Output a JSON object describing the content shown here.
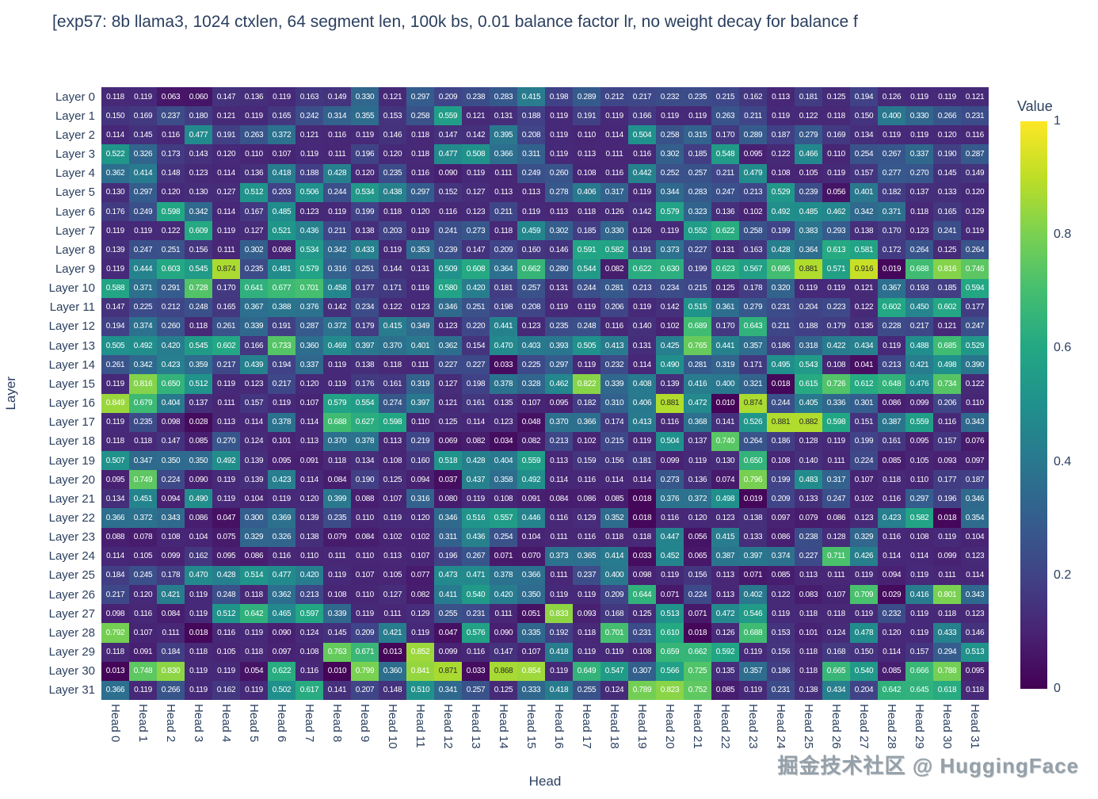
{
  "title": "[exp57: 8b llama3, 1024 ctxlen, 64 segment len, 100k bs, 0.01 balance factor lr, no weight decay for balance f",
  "watermark": "掘金技术社区 @ HuggingFace",
  "chart_data": {
    "type": "heatmap",
    "title": "[exp57: 8b llama3, 1024 ctxlen, 64 segment len, 100k bs, 0.01 balance factor lr, no weight decay for balance f",
    "xlabel": "Head",
    "ylabel": "Layer",
    "colorscale": "viridis",
    "font_color": "#2a3f5f",
    "background": "#ffffff",
    "legend_position": "right",
    "colorbar": {
      "title": "Value",
      "range": [
        0,
        1
      ],
      "tick_values": [
        0,
        0.2,
        0.4,
        0.6,
        0.8,
        1
      ],
      "tick_labels": [
        "0",
        "0.2",
        "0.4",
        "0.6",
        "0.8",
        "1"
      ]
    },
    "rows": [
      "Layer 0",
      "Layer 1",
      "Layer 2",
      "Layer 3",
      "Layer 4",
      "Layer 5",
      "Layer 6",
      "Layer 7",
      "Layer 8",
      "Layer 9",
      "Layer 10",
      "Layer 11",
      "Layer 12",
      "Layer 13",
      "Layer 14",
      "Layer 15",
      "Layer 16",
      "Layer 17",
      "Layer 18",
      "Layer 19",
      "Layer 20",
      "Layer 21",
      "Layer 22",
      "Layer 23",
      "Layer 24",
      "Layer 25",
      "Layer 26",
      "Layer 27",
      "Layer 28",
      "Layer 29",
      "Layer 30",
      "Layer 31"
    ],
    "columns": [
      "Head 0",
      "Head 1",
      "Head 2",
      "Head 3",
      "Head 4",
      "Head 5",
      "Head 6",
      "Head 7",
      "Head 8",
      "Head 9",
      "Head 10",
      "Head 11",
      "Head 12",
      "Head 13",
      "Head 14",
      "Head 15",
      "Head 16",
      "Head 17",
      "Head 18",
      "Head 19",
      "Head 20",
      "Head 21",
      "Head 22",
      "Head 23",
      "Head 24",
      "Head 25",
      "Head 26",
      "Head 27",
      "Head 28",
      "Head 29",
      "Head 30",
      "Head 31"
    ],
    "values": [
      [
        0.118,
        0.119,
        0.063,
        0.06,
        0.147,
        0.136,
        0.119,
        0.163,
        0.149,
        0.33,
        0.121,
        0.297,
        0.209,
        0.238,
        0.283,
        0.415,
        0.198,
        0.289,
        0.212,
        0.217,
        0.232,
        0.235,
        0.215,
        0.162,
        0.113,
        0.181,
        0.125,
        0.194,
        0.126,
        0.119,
        0.119,
        0.121
      ],
      [
        0.15,
        0.169,
        0.237,
        0.18,
        0.121,
        0.119,
        0.165,
        0.242,
        0.314,
        0.355,
        0.153,
        0.258,
        0.559,
        0.121,
        0.131,
        0.188,
        0.119,
        0.191,
        0.119,
        0.166,
        0.119,
        0.119,
        0.263,
        0.211,
        0.119,
        0.122,
        0.118,
        0.15,
        0.4,
        0.33,
        0.266,
        0.231
      ],
      [
        0.114,
        0.145,
        0.116,
        0.477,
        0.191,
        0.263,
        0.372,
        0.121,
        0.116,
        0.119,
        0.146,
        0.118,
        0.147,
        0.142,
        0.395,
        0.208,
        0.119,
        0.11,
        0.114,
        0.504,
        0.258,
        0.315,
        0.17,
        0.289,
        0.187,
        0.279,
        0.169,
        0.134,
        0.119,
        0.119,
        0.12,
        0.116
      ],
      [
        0.522,
        0.326,
        0.173,
        0.143,
        0.12,
        0.11,
        0.107,
        0.119,
        0.111,
        0.196,
        0.12,
        0.118,
        0.477,
        0.508,
        0.366,
        0.311,
        0.119,
        0.113,
        0.111,
        0.116,
        0.302,
        0.185,
        0.548,
        0.095,
        0.122,
        0.466,
        0.11,
        0.254,
        0.267,
        0.337,
        0.19,
        0.287
      ],
      [
        0.362,
        0.414,
        0.148,
        0.123,
        0.114,
        0.136,
        0.418,
        0.188,
        0.428,
        0.12,
        0.235,
        0.116,
        0.09,
        0.119,
        0.111,
        0.249,
        0.26,
        0.108,
        0.116,
        0.442,
        0.252,
        0.257,
        0.211,
        0.479,
        0.108,
        0.105,
        0.119,
        0.157,
        0.277,
        0.27,
        0.145,
        0.149
      ],
      [
        0.13,
        0.297,
        0.12,
        0.13,
        0.127,
        0.512,
        0.203,
        0.506,
        0.244,
        0.534,
        0.438,
        0.297,
        0.152,
        0.127,
        0.113,
        0.113,
        0.278,
        0.406,
        0.317,
        0.119,
        0.344,
        0.283,
        0.247,
        0.213,
        0.529,
        0.239,
        0.056,
        0.401,
        0.182,
        0.137,
        0.133,
        0.12
      ],
      [
        0.176,
        0.249,
        0.598,
        0.342,
        0.114,
        0.167,
        0.485,
        0.123,
        0.119,
        0.199,
        0.118,
        0.12,
        0.116,
        0.123,
        0.211,
        0.119,
        0.113,
        0.118,
        0.126,
        0.142,
        0.579,
        0.323,
        0.136,
        0.102,
        0.492,
        0.485,
        0.462,
        0.342,
        0.371,
        0.118,
        0.165,
        0.129
      ],
      [
        0.119,
        0.119,
        0.122,
        0.609,
        0.119,
        0.127,
        0.521,
        0.436,
        0.211,
        0.138,
        0.203,
        0.119,
        0.241,
        0.273,
        0.118,
        0.459,
        0.302,
        0.185,
        0.33,
        0.126,
        0.119,
        0.552,
        0.622,
        0.258,
        0.199,
        0.383,
        0.293,
        0.138,
        0.17,
        0.123,
        0.241,
        0.119
      ],
      [
        0.139,
        0.247,
        0.251,
        0.156,
        0.111,
        0.302,
        0.098,
        0.534,
        0.342,
        0.433,
        0.119,
        0.353,
        0.239,
        0.147,
        0.209,
        0.16,
        0.146,
        0.591,
        0.582,
        0.191,
        0.373,
        0.227,
        0.131,
        0.163,
        0.428,
        0.364,
        0.613,
        0.581,
        0.172,
        0.264,
        0.125,
        0.264
      ],
      [
        0.119,
        0.444,
        0.603,
        0.545,
        0.874,
        0.235,
        0.481,
        0.579,
        0.316,
        0.251,
        0.144,
        0.131,
        0.509,
        0.608,
        0.364,
        0.662,
        0.28,
        0.544,
        0.082,
        0.622,
        0.63,
        0.199,
        0.623,
        0.567,
        0.695,
        0.881,
        0.571,
        0.916,
        0.019,
        0.688,
        0.816,
        0.746
      ],
      [
        0.588,
        0.371,
        0.291,
        0.728,
        0.17,
        0.641,
        0.677,
        0.701,
        0.458,
        0.177,
        0.171,
        0.119,
        0.58,
        0.42,
        0.181,
        0.257,
        0.131,
        0.244,
        0.281,
        0.213,
        0.234,
        0.215,
        0.125,
        0.178,
        0.32,
        0.119,
        0.119,
        0.121,
        0.367,
        0.193,
        0.185,
        0.594
      ],
      [
        0.147,
        0.225,
        0.212,
        0.248,
        0.165,
        0.367,
        0.388,
        0.376,
        0.142,
        0.234,
        0.122,
        0.123,
        0.346,
        0.251,
        0.198,
        0.208,
        0.119,
        0.119,
        0.206,
        0.119,
        0.142,
        0.515,
        0.361,
        0.279,
        0.231,
        0.204,
        0.223,
        0.122,
        0.602,
        0.45,
        0.602,
        0.177
      ],
      [
        0.194,
        0.374,
        0.26,
        0.118,
        0.261,
        0.339,
        0.191,
        0.287,
        0.372,
        0.179,
        0.415,
        0.349,
        0.123,
        0.22,
        0.441,
        0.123,
        0.235,
        0.248,
        0.116,
        0.14,
        0.102,
        0.689,
        0.17,
        0.643,
        0.211,
        0.188,
        0.179,
        0.135,
        0.228,
        0.217,
        0.121,
        0.247
      ],
      [
        0.505,
        0.492,
        0.42,
        0.545,
        0.602,
        0.166,
        0.733,
        0.36,
        0.469,
        0.397,
        0.37,
        0.401,
        0.362,
        0.154,
        0.47,
        0.403,
        0.393,
        0.505,
        0.413,
        0.131,
        0.425,
        0.765,
        0.441,
        0.357,
        0.186,
        0.318,
        0.422,
        0.434,
        0.119,
        0.488,
        0.685,
        0.529
      ],
      [
        0.261,
        0.342,
        0.423,
        0.359,
        0.217,
        0.439,
        0.194,
        0.337,
        0.119,
        0.138,
        0.118,
        0.111,
        0.227,
        0.227,
        0.033,
        0.225,
        0.297,
        0.119,
        0.232,
        0.114,
        0.49,
        0.281,
        0.319,
        0.171,
        0.495,
        0.543,
        0.108,
        0.041,
        0.213,
        0.421,
        0.498,
        0.39
      ],
      [
        0.119,
        0.816,
        0.65,
        0.512,
        0.119,
        0.123,
        0.217,
        0.12,
        0.119,
        0.176,
        0.161,
        0.319,
        0.127,
        0.198,
        0.378,
        0.328,
        0.462,
        0.822,
        0.339,
        0.408,
        0.139,
        0.416,
        0.4,
        0.321,
        0.018,
        0.615,
        0.726,
        0.612,
        0.648,
        0.476,
        0.734,
        0.122
      ],
      [
        0.849,
        0.679,
        0.404,
        0.137,
        0.111,
        0.157,
        0.119,
        0.107,
        0.579,
        0.554,
        0.274,
        0.397,
        0.121,
        0.161,
        0.135,
        0.107,
        0.095,
        0.182,
        0.31,
        0.406,
        0.881,
        0.472,
        0.01,
        0.874,
        0.244,
        0.405,
        0.336,
        0.301,
        0.086,
        0.099,
        0.206,
        0.11
      ],
      [
        0.119,
        0.235,
        0.098,
        0.028,
        0.113,
        0.114,
        0.378,
        0.114,
        0.688,
        0.627,
        0.598,
        0.11,
        0.125,
        0.114,
        0.123,
        0.048,
        0.37,
        0.366,
        0.174,
        0.413,
        0.116,
        0.368,
        0.141,
        0.526,
        0.881,
        0.882,
        0.598,
        0.151,
        0.387,
        0.559,
        0.116,
        0.343
      ],
      [
        0.118,
        0.118,
        0.147,
        0.085,
        0.27,
        0.124,
        0.101,
        0.113,
        0.37,
        0.378,
        0.113,
        0.219,
        0.069,
        0.082,
        0.034,
        0.082,
        0.213,
        0.102,
        0.215,
        0.119,
        0.504,
        0.137,
        0.74,
        0.264,
        0.186,
        0.128,
        0.119,
        0.199,
        0.161,
        0.095,
        0.157,
        0.076
      ],
      [
        0.507,
        0.347,
        0.35,
        0.35,
        0.492,
        0.139,
        0.095,
        0.091,
        0.118,
        0.134,
        0.108,
        0.16,
        0.518,
        0.428,
        0.404,
        0.559,
        0.113,
        0.159,
        0.156,
        0.181,
        0.099,
        0.119,
        0.13,
        0.65,
        0.108,
        0.14,
        0.111,
        0.224,
        0.085,
        0.105,
        0.093,
        0.097
      ],
      [
        0.095,
        0.749,
        0.224,
        0.09,
        0.119,
        0.139,
        0.423,
        0.114,
        0.084,
        0.19,
        0.125,
        0.094,
        0.037,
        0.437,
        0.358,
        0.492,
        0.114,
        0.116,
        0.114,
        0.114,
        0.273,
        0.136,
        0.074,
        0.796,
        0.199,
        0.483,
        0.317,
        0.107,
        0.118,
        0.11,
        0.177,
        0.187
      ],
      [
        0.134,
        0.451,
        0.094,
        0.49,
        0.119,
        0.104,
        0.119,
        0.12,
        0.399,
        0.088,
        0.107,
        0.316,
        0.08,
        0.119,
        0.108,
        0.091,
        0.084,
        0.086,
        0.085,
        0.018,
        0.376,
        0.372,
        0.498,
        0.019,
        0.209,
        0.133,
        0.247,
        0.102,
        0.116,
        0.297,
        0.196,
        0.346
      ],
      [
        0.366,
        0.372,
        0.343,
        0.086,
        0.047,
        0.3,
        0.369,
        0.139,
        0.235,
        0.11,
        0.119,
        0.12,
        0.346,
        0.516,
        0.557,
        0.446,
        0.116,
        0.129,
        0.352,
        0.018,
        0.116,
        0.12,
        0.123,
        0.138,
        0.097,
        0.079,
        0.086,
        0.123,
        0.423,
        0.582,
        0.018,
        0.354
      ],
      [
        0.088,
        0.078,
        0.108,
        0.104,
        0.075,
        0.329,
        0.326,
        0.138,
        0.079,
        0.084,
        0.102,
        0.102,
        0.311,
        0.436,
        0.254,
        0.104,
        0.111,
        0.116,
        0.118,
        0.118,
        0.447,
        0.056,
        0.415,
        0.133,
        0.086,
        0.238,
        0.128,
        0.329,
        0.116,
        0.108,
        0.119,
        0.104
      ],
      [
        0.114,
        0.105,
        0.099,
        0.162,
        0.095,
        0.086,
        0.116,
        0.11,
        0.111,
        0.11,
        0.113,
        0.107,
        0.196,
        0.267,
        0.071,
        0.07,
        0.373,
        0.365,
        0.414,
        0.033,
        0.452,
        0.065,
        0.387,
        0.397,
        0.374,
        0.227,
        0.711,
        0.426,
        0.114,
        0.114,
        0.099,
        0.123
      ],
      [
        0.184,
        0.245,
        0.178,
        0.47,
        0.428,
        0.514,
        0.477,
        0.42,
        0.119,
        0.107,
        0.105,
        0.077,
        0.473,
        0.471,
        0.378,
        0.366,
        0.111,
        0.237,
        0.4,
        0.098,
        0.119,
        0.156,
        0.113,
        0.071,
        0.085,
        0.113,
        0.111,
        0.119,
        0.094,
        0.119,
        0.111,
        0.114
      ],
      [
        0.217,
        0.12,
        0.421,
        0.119,
        0.248,
        0.118,
        0.362,
        0.213,
        0.108,
        0.11,
        0.127,
        0.082,
        0.411,
        0.54,
        0.42,
        0.35,
        0.119,
        0.119,
        0.209,
        0.644,
        0.071,
        0.224,
        0.113,
        0.402,
        0.122,
        0.083,
        0.107,
        0.709,
        0.029,
        0.416,
        0.801,
        0.343
      ],
      [
        0.098,
        0.116,
        0.084,
        0.119,
        0.512,
        0.642,
        0.465,
        0.597,
        0.339,
        0.119,
        0.111,
        0.129,
        0.255,
        0.231,
        0.111,
        0.051,
        0.833,
        0.093,
        0.168,
        0.125,
        0.513,
        0.071,
        0.472,
        0.546,
        0.119,
        0.118,
        0.118,
        0.119,
        0.232,
        0.119,
        0.118,
        0.123
      ],
      [
        0.792,
        0.107,
        0.111,
        0.018,
        0.116,
        0.119,
        0.09,
        0.124,
        0.145,
        0.209,
        0.421,
        0.119,
        0.047,
        0.576,
        0.09,
        0.335,
        0.192,
        0.118,
        0.701,
        0.231,
        0.61,
        0.018,
        0.126,
        0.688,
        0.153,
        0.101,
        0.124,
        0.478,
        0.12,
        0.119,
        0.433,
        0.146
      ],
      [
        0.118,
        0.091,
        0.184,
        0.118,
        0.105,
        0.118,
        0.097,
        0.108,
        0.763,
        0.671,
        0.013,
        0.852,
        0.099,
        0.116,
        0.147,
        0.107,
        0.418,
        0.119,
        0.119,
        0.108,
        0.659,
        0.662,
        0.592,
        0.119,
        0.156,
        0.118,
        0.168,
        0.15,
        0.114,
        0.157,
        0.294,
        0.513
      ],
      [
        0.013,
        0.748,
        0.83,
        0.119,
        0.119,
        0.054,
        0.622,
        0.116,
        0.01,
        0.799,
        0.36,
        0.841,
        0.871,
        0.033,
        0.868,
        0.854,
        0.119,
        0.649,
        0.547,
        0.307,
        0.566,
        0.725,
        0.135,
        0.357,
        0.186,
        0.118,
        0.665,
        0.54,
        0.085,
        0.666,
        0.788,
        0.095
      ],
      [
        0.366,
        0.119,
        0.266,
        0.119,
        0.162,
        0.119,
        0.502,
        0.617,
        0.141,
        0.207,
        0.148,
        0.51,
        0.341,
        0.257,
        0.125,
        0.333,
        0.418,
        0.255,
        0.124,
        0.789,
        0.823,
        0.752,
        0.085,
        0.119,
        0.231,
        0.138,
        0.434,
        0.204,
        0.642,
        0.645,
        0.618,
        0.118
      ]
    ]
  }
}
